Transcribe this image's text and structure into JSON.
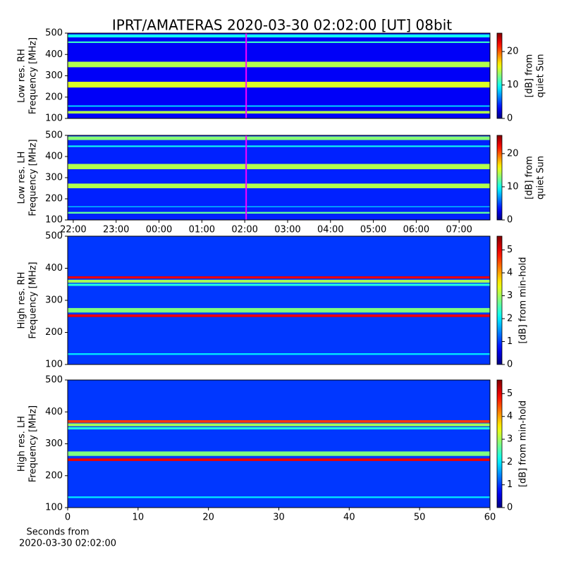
{
  "chart_data": [
    {
      "type": "spectrogram",
      "title": "IPRT/AMATERAS 2020-03-30 02:02:00 [UT]   08bit",
      "ylabel": [
        "Low res. RH",
        "Frequency [MHz]"
      ],
      "xlim": [
        21.87,
        31.72
      ],
      "ylim": [
        100,
        500
      ],
      "yticks": [
        100,
        200,
        300,
        400,
        500
      ],
      "marker_x": 26.0333,
      "marker_color": "#ff00ff",
      "clim": [
        0,
        25.5
      ],
      "cticks": [
        0,
        10,
        20
      ],
      "clabel": [
        "[dB] from",
        "quiet Sun"
      ],
      "background": 3,
      "bands": [
        {
          "ylim": [
            123,
            135
          ],
          "value": 14
        },
        {
          "ylim": [
            155,
            161
          ],
          "value": 9
        },
        {
          "ylim": [
            245,
            272
          ],
          "value": 15
        },
        {
          "ylim": [
            340,
            366
          ],
          "value": 14
        },
        {
          "ylim": [
            454,
            461
          ],
          "value": 11
        },
        {
          "ylim": [
            480,
            494
          ],
          "value": 10
        }
      ]
    },
    {
      "type": "spectrogram",
      "ylabel": [
        "Low res. LH",
        "Frequency [MHz]"
      ],
      "xlim": [
        21.87,
        31.72
      ],
      "ylim": [
        100,
        500
      ],
      "yticks": [
        100,
        200,
        300,
        400,
        500
      ],
      "xticks": [
        {
          "value": 22,
          "label": "22:00"
        },
        {
          "value": 23,
          "label": "23:00"
        },
        {
          "value": 24,
          "label": "00:00"
        },
        {
          "value": 25,
          "label": "01:00"
        },
        {
          "value": 26,
          "label": "02:00"
        },
        {
          "value": 27,
          "label": "03:00"
        },
        {
          "value": 28,
          "label": "04:00"
        },
        {
          "value": 29,
          "label": "05:00"
        },
        {
          "value": 30,
          "label": "06:00"
        },
        {
          "value": 31,
          "label": "07:00"
        }
      ],
      "marker_x": 26.0333,
      "marker_color": "#ff00ff",
      "clim": [
        0,
        25.5
      ],
      "cticks": [
        0,
        10,
        20
      ],
      "clabel": [
        "[dB] from",
        "quiet Sun"
      ],
      "background": 4,
      "bands": [
        {
          "ylim": [
            130,
            138
          ],
          "value": 12
        },
        {
          "ylim": [
            160,
            165
          ],
          "value": 8
        },
        {
          "ylim": [
            250,
            272
          ],
          "value": 14
        },
        {
          "ylim": [
            340,
            365
          ],
          "value": 14
        },
        {
          "ylim": [
            445,
            452
          ],
          "value": 10
        },
        {
          "ylim": [
            478,
            495
          ],
          "value": 13
        }
      ]
    },
    {
      "type": "spectrogram",
      "ylabel": [
        "High res. RH",
        "Frequency [MHz]"
      ],
      "xlim": [
        0,
        60
      ],
      "ylim": [
        100,
        500
      ],
      "yticks": [
        100,
        200,
        300,
        400,
        500
      ],
      "clim": [
        0,
        5.6
      ],
      "cticks": [
        0,
        1,
        2,
        3,
        4,
        5
      ],
      "clabel": [
        "[dB] from min-hold"
      ],
      "background": 1,
      "bands": [
        {
          "ylim": [
            130,
            135
          ],
          "value": 2
        },
        {
          "ylim": [
            248,
            256
          ],
          "value": 5
        },
        {
          "ylim": [
            262,
            276
          ],
          "value": 2.8
        },
        {
          "ylim": [
            345,
            352
          ],
          "value": 2.3
        },
        {
          "ylim": [
            355,
            364
          ],
          "value": 3
        },
        {
          "ylim": [
            368,
            375
          ],
          "value": 5
        }
      ]
    },
    {
      "type": "spectrogram",
      "ylabel": [
        "High res. LH",
        "Frequency [MHz]"
      ],
      "xlim": [
        0,
        60
      ],
      "ylim": [
        100,
        500
      ],
      "yticks": [
        100,
        200,
        300,
        400,
        500
      ],
      "xticks": [
        0,
        10,
        20,
        30,
        40,
        50,
        60
      ],
      "xlabel": [
        "Seconds from",
        "2020-03-30 02:02:00"
      ],
      "clim": [
        0,
        5.6
      ],
      "cticks": [
        0,
        1,
        2,
        3,
        4,
        5
      ],
      "clabel": [
        "[dB] from min-hold"
      ],
      "background": 1,
      "bands": [
        {
          "ylim": [
            130,
            135
          ],
          "value": 2
        },
        {
          "ylim": [
            246,
            254
          ],
          "value": 5
        },
        {
          "ylim": [
            262,
            276
          ],
          "value": 2.8
        },
        {
          "ylim": [
            345,
            352
          ],
          "value": 2.3
        },
        {
          "ylim": [
            355,
            364
          ],
          "value": 3
        },
        {
          "ylim": [
            366,
            374
          ],
          "value": 4.6
        }
      ]
    }
  ]
}
